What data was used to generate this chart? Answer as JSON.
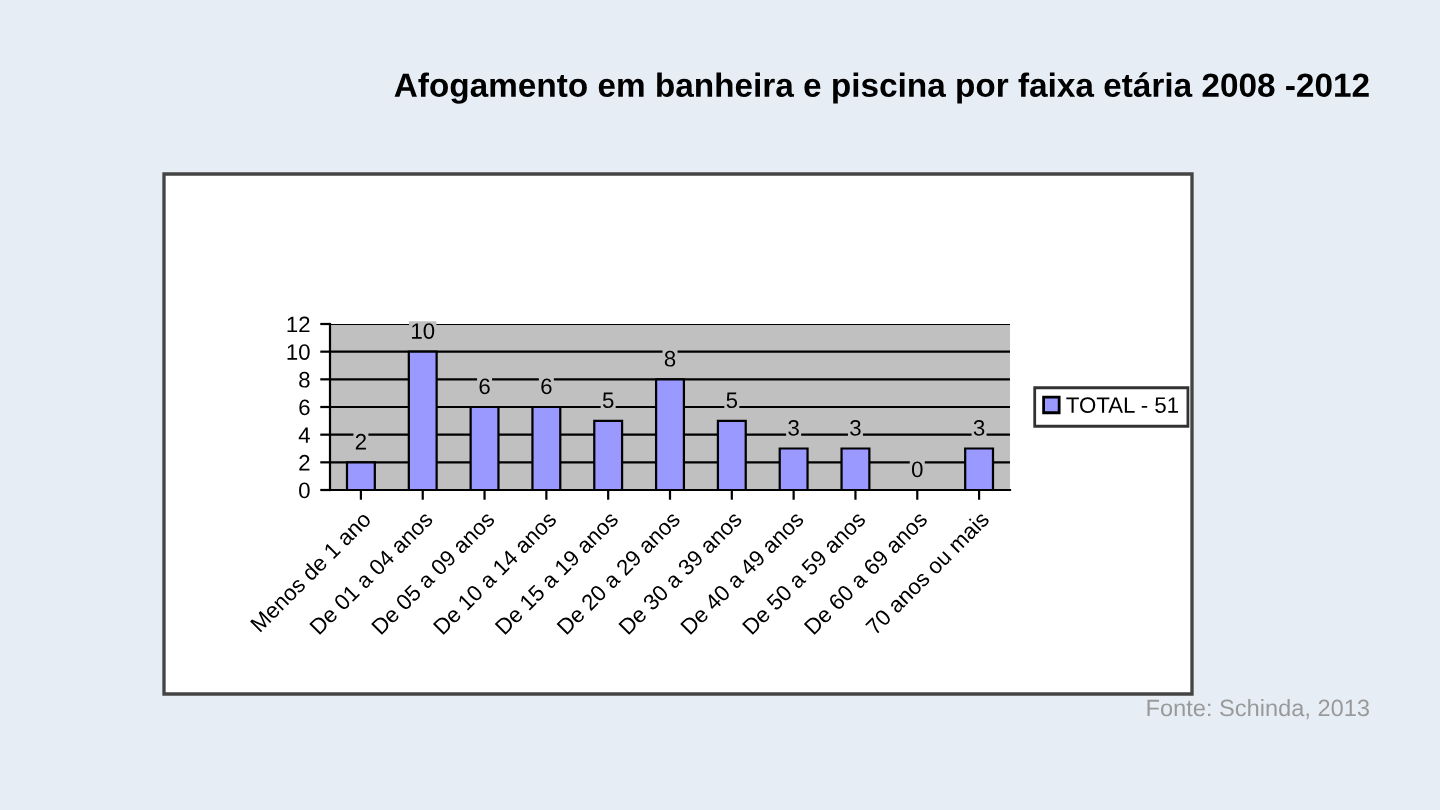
{
  "chart_data": {
    "type": "bar",
    "title": "Afogamento em banheira e piscina por faixa etária 2008 -2012",
    "categories": [
      "Menos de 1 ano",
      "De 01 a 04 anos",
      "De 05 a 09 anos",
      "De 10 a 14 anos",
      "De 15 a 19 anos",
      "De 20 a 29 anos",
      "De 30 a 39 anos",
      "De 40 a 49 anos",
      "De 50 a 59 anos",
      "De 60 a 69 anos",
      "70 anos ou mais"
    ],
    "series": [
      {
        "name": "TOTAL - 51",
        "color": "#9999ff",
        "values": [
          2,
          10,
          6,
          6,
          5,
          8,
          5,
          3,
          3,
          0,
          3
        ]
      }
    ],
    "ylim": [
      0,
      12
    ],
    "yticks": [
      0,
      2,
      4,
      6,
      8,
      10,
      12
    ],
    "grid": "y",
    "legend": "right",
    "data_labels": true,
    "annotations": [
      "Fonte: Schinda, 2013"
    ]
  }
}
